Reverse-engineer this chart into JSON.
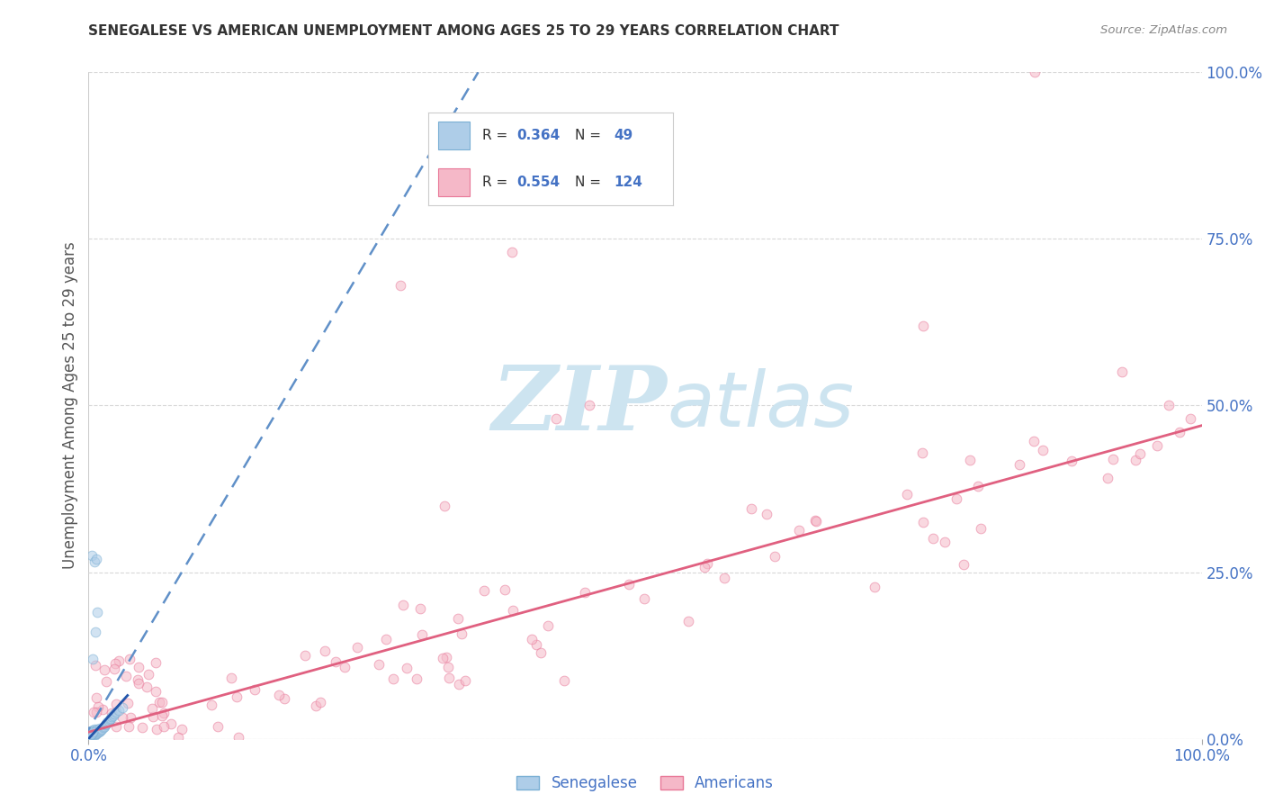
{
  "title": "SENEGALESE VS AMERICAN UNEMPLOYMENT AMONG AGES 25 TO 29 YEARS CORRELATION CHART",
  "source": "Source: ZipAtlas.com",
  "ylabel": "Unemployment Among Ages 25 to 29 years",
  "watermark_zip": "ZIP",
  "watermark_atlas": "atlas",
  "watermark_color": "#cde4f0",
  "background_color": "#ffffff",
  "grid_color": "#d8d8d8",
  "title_color": "#333333",
  "axis_label_color": "#555555",
  "tick_label_color": "#4472c4",
  "senegalese_color": "#aecde8",
  "senegalese_edge": "#7aafd4",
  "american_color": "#f5b8c8",
  "american_edge": "#e87898",
  "trend_sene_color": "#6090c8",
  "trend_amer_color": "#e06080",
  "legend_R1": "0.364",
  "legend_N1": "49",
  "legend_R2": "0.554",
  "legend_N2": "124",
  "legend_label1": "Senegalese",
  "legend_label2": "Americans",
  "scatter_size": 60,
  "scatter_alpha": 0.55
}
